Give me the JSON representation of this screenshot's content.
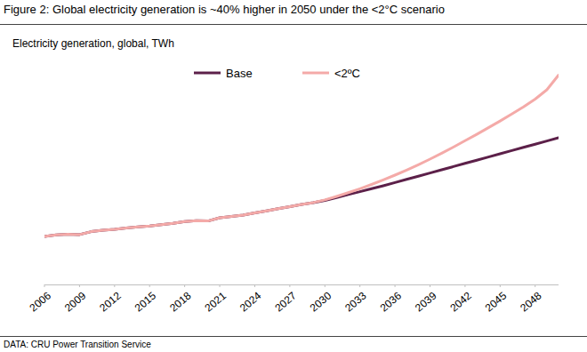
{
  "chart_data": {
    "type": "line",
    "title": "Figure 2: Global electricity generation is ~40% higher in 2050 under the <2°C scenario",
    "subtitle": "Electricity generation, global, TWh",
    "source": "DATA: CRU Power Transition Service",
    "x": [
      2006,
      2007,
      2008,
      2009,
      2010,
      2011,
      2012,
      2013,
      2014,
      2015,
      2016,
      2017,
      2018,
      2019,
      2020,
      2021,
      2022,
      2023,
      2024,
      2025,
      2026,
      2027,
      2028,
      2029,
      2030,
      2031,
      2032,
      2033,
      2034,
      2035,
      2036,
      2037,
      2038,
      2039,
      2040,
      2041,
      2042,
      2043,
      2044,
      2045,
      2046,
      2047,
      2048,
      2049,
      2050
    ],
    "xlim": [
      2006,
      2050
    ],
    "xticks": [
      2006,
      2009,
      2012,
      2015,
      2018,
      2021,
      2024,
      2027,
      2030,
      2033,
      2036,
      2039,
      2042,
      2045,
      2048
    ],
    "ylim": [
      0,
      90000
    ],
    "tick_labels": "x",
    "grid": false,
    "legend": "top",
    "series": [
      {
        "name": "Base",
        "color": "#5c2049",
        "values": [
          18000,
          18600,
          18800,
          18700,
          19800,
          20300,
          20700,
          21200,
          21600,
          21900,
          22400,
          22900,
          23600,
          23900,
          23800,
          25000,
          25500,
          26000,
          26800,
          27600,
          28400,
          29200,
          30000,
          30700,
          31500,
          32600,
          33700,
          34800,
          35900,
          37000,
          38200,
          39400,
          40600,
          41800,
          43000,
          44200,
          45400,
          46600,
          47800,
          49000,
          50200,
          51400,
          52600,
          53800,
          55000
        ]
      },
      {
        "name": "<2ºC",
        "color": "#f4aaa8",
        "values": [
          18000,
          18600,
          18800,
          18700,
          19800,
          20300,
          20700,
          21200,
          21600,
          21900,
          22400,
          22900,
          23600,
          23900,
          23800,
          25000,
          25500,
          26000,
          26800,
          27600,
          28400,
          29200,
          30000,
          30700,
          31700,
          33000,
          34400,
          35900,
          37500,
          39200,
          41000,
          42900,
          44900,
          47000,
          49200,
          51500,
          53900,
          56300,
          58800,
          61300,
          63900,
          66600,
          69500,
          73000,
          78500
        ]
      }
    ]
  }
}
